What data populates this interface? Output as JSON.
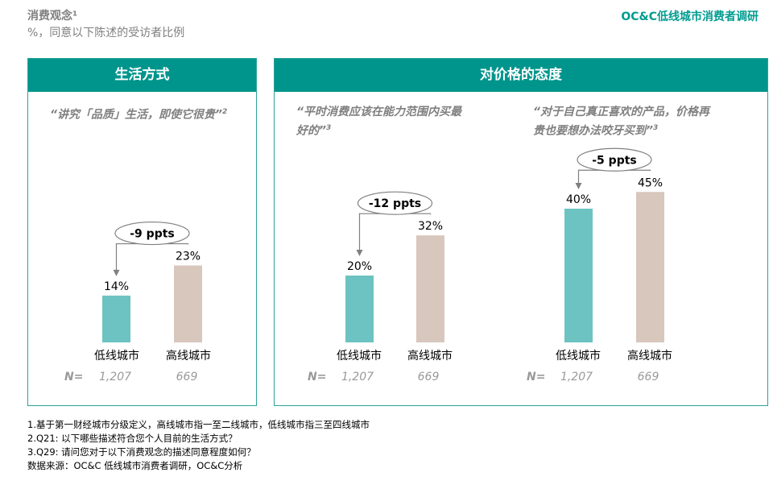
{
  "header": {
    "title": "消费观念¹",
    "subtitle": "%，同意以下陈述的受访者比例",
    "brand": "OC&C低线城市消费者调研"
  },
  "panels": {
    "lifestyle": "生活方式",
    "price": "对价格的态度"
  },
  "quotes": {
    "q1": "“讲究「品质」生活，即使它很贵”",
    "q1_sup": "2",
    "q2": "“平时消费应该在能力范围内买最好的”",
    "q2_sup": "3",
    "q3": "“对于自己真正喜欢的产品，价格再贵也要想办法咬牙买到”",
    "q3_sup": "3"
  },
  "n_label": "N=",
  "colors": {
    "low_tier": "#6cc3c1",
    "high_tier": "#d7c7bd",
    "accent": "#00958c"
  },
  "chart_data": [
    {
      "type": "bar",
      "title": "“讲究「品质」生活，即使它很贵”",
      "categories": [
        "低线城市",
        "高线城市"
      ],
      "values": [
        14,
        23
      ],
      "value_labels": [
        "14%",
        "23%"
      ],
      "n": [
        "1,207",
        "669"
      ],
      "difference": "-9 ppts",
      "ylim": [
        0,
        50
      ]
    },
    {
      "type": "bar",
      "title": "“平时消费应该在能力范围内买最好的”",
      "categories": [
        "低线城市",
        "高线城市"
      ],
      "values": [
        20,
        32
      ],
      "value_labels": [
        "20%",
        "32%"
      ],
      "n": [
        "1,207",
        "669"
      ],
      "difference": "-12 ppts",
      "ylim": [
        0,
        50
      ]
    },
    {
      "type": "bar",
      "title": "“对于自己真正喜欢的产品，价格再贵也要想办法咬牙买到”",
      "categories": [
        "低线城市",
        "高线城市"
      ],
      "values": [
        40,
        45
      ],
      "value_labels": [
        "40%",
        "45%"
      ],
      "n": [
        "1,207",
        "669"
      ],
      "difference": "-5 ppts",
      "ylim": [
        0,
        50
      ]
    }
  ],
  "footnotes": [
    "1.基于第一财经城市分级定义，高线城市指一至二线城市，低线城市指三至四线城市",
    "2.Q21: 以下哪些描述符合您个人目前的生活方式？",
    "3.Q29: 请问您对于以下消费观念的描述同意程度如何？",
    "数据来源：OC&C 低线城市消费者调研，OC&C分析"
  ]
}
